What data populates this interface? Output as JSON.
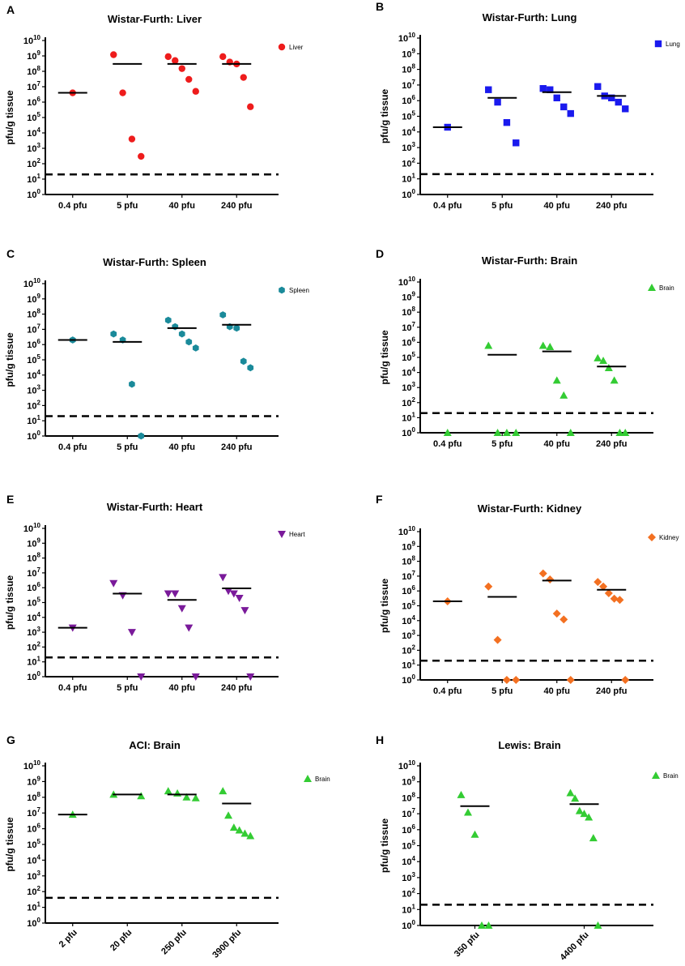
{
  "figure": {
    "colors": {
      "liver": "#ee1c1c",
      "lung": "#1a1aee",
      "spleen": "#1a8a9a",
      "brain": "#33cc33",
      "heart": "#7a1a9a",
      "kidney": "#f37021"
    }
  },
  "chart_data": [
    {
      "type": "scatter",
      "panel": "A",
      "title": "Wistar-Furth: Liver",
      "ylabel": "pfu/g tissue",
      "yscale": "log10",
      "ylim": [
        1,
        10000000000
      ],
      "yticks": [
        "10",
        "10",
        "10",
        "10",
        "10",
        "10",
        "10",
        "10",
        "10",
        "10",
        "10"
      ],
      "yexponents": [
        "0",
        "1",
        "2",
        "3",
        "4",
        "5",
        "6",
        "7",
        "8",
        "9",
        "10"
      ],
      "categories": [
        "0.4 pfu",
        "5 pfu",
        "40 pfu",
        "240 pfu"
      ],
      "legend": "Liver",
      "marker": "circle",
      "color_key": "liver",
      "detection_limit": 20,
      "means": [
        4000000,
        300000000,
        300000000,
        300000000
      ],
      "points": [
        [
          4000000
        ],
        [
          1200000000,
          4000000,
          4000,
          300
        ],
        [
          900000000,
          500000000,
          150000000,
          30000000,
          5000000
        ],
        [
          900000000,
          400000000,
          300000000,
          40000000,
          500000
        ]
      ]
    },
    {
      "type": "scatter",
      "panel": "B",
      "title": "Wistar-Furth: Lung",
      "ylabel": "pfu/g tissue",
      "yscale": "log10",
      "ylim": [
        1,
        10000000000
      ],
      "yticks": [
        "10",
        "10",
        "10",
        "10",
        "10",
        "10",
        "10",
        "10",
        "10",
        "10",
        "10"
      ],
      "yexponents": [
        "0",
        "1",
        "2",
        "3",
        "4",
        "5",
        "6",
        "7",
        "8",
        "9",
        "10"
      ],
      "categories": [
        "0.4 pfu",
        "5 pfu",
        "40 pfu",
        "240 pfu"
      ],
      "legend": "Lung",
      "marker": "square",
      "color_key": "lung",
      "detection_limit": 20,
      "means": [
        20000,
        1500000,
        3500000,
        2000000
      ],
      "points": [
        [
          20000
        ],
        [
          5000000,
          800000,
          40000,
          2000
        ],
        [
          6000000,
          5000000,
          1500000,
          400000,
          150000
        ],
        [
          8000000,
          2000000,
          1500000,
          800000,
          300000
        ]
      ]
    },
    {
      "type": "scatter",
      "panel": "C",
      "title": "Wistar-Furth: Spleen",
      "ylabel": "pfu/g tissue",
      "yscale": "log10",
      "ylim": [
        1,
        10000000000
      ],
      "yticks": [
        "10",
        "10",
        "10",
        "10",
        "10",
        "10",
        "10",
        "10",
        "10",
        "10",
        "10"
      ],
      "yexponents": [
        "0",
        "1",
        "2",
        "3",
        "4",
        "5",
        "6",
        "7",
        "8",
        "9",
        "10"
      ],
      "categories": [
        "0.4 pfu",
        "5 pfu",
        "40 pfu",
        "240 pfu"
      ],
      "legend": "Spleen",
      "marker": "hexagon",
      "color_key": "spleen",
      "detection_limit": 20,
      "means": [
        2000000,
        1500000,
        12000000,
        20000000
      ],
      "points": [
        [
          2000000
        ],
        [
          5000000,
          2000000,
          2500,
          1
        ],
        [
          40000000,
          15000000,
          5000000,
          1500000,
          600000
        ],
        [
          90000000,
          15000000,
          12000000,
          80000,
          30000
        ]
      ]
    },
    {
      "type": "scatter",
      "panel": "D",
      "title": "Wistar-Furth:  Brain",
      "ylabel": "pfu/g tissue",
      "yscale": "log10",
      "ylim": [
        1,
        10000000000
      ],
      "yticks": [
        "10",
        "10",
        "10",
        "10",
        "10",
        "10",
        "10",
        "10",
        "10",
        "10",
        "10"
      ],
      "yexponents": [
        "0",
        "1",
        "2",
        "3",
        "4",
        "5",
        "6",
        "7",
        "8",
        "9",
        "10"
      ],
      "categories": [
        "0.4 pfu",
        "5 pfu",
        "40 pfu",
        "240 pfu"
      ],
      "legend": "Brain",
      "marker": "triangle",
      "color_key": "brain",
      "detection_limit": 20,
      "means": [
        null,
        150000,
        250000,
        25000
      ],
      "points": [
        [
          1
        ],
        [
          600000,
          1,
          1,
          1
        ],
        [
          600000,
          500000,
          3000,
          300,
          1
        ],
        [
          90000,
          60000,
          20000,
          3000,
          1,
          1
        ]
      ]
    },
    {
      "type": "scatter",
      "panel": "E",
      "title": "Wistar-Furth: Heart",
      "ylabel": "pfu/g tissue",
      "yscale": "log10",
      "ylim": [
        1,
        10000000000
      ],
      "yticks": [
        "10",
        "10",
        "10",
        "10",
        "10",
        "10",
        "10",
        "10",
        "10",
        "10",
        "10"
      ],
      "yexponents": [
        "0",
        "1",
        "2",
        "3",
        "4",
        "5",
        "6",
        "7",
        "8",
        "9",
        "10"
      ],
      "categories": [
        "0.4 pfu",
        "5 pfu",
        "40 pfu",
        "240 pfu"
      ],
      "legend": "Heart",
      "marker": "triangle-down",
      "color_key": "heart",
      "detection_limit": 20,
      "means": [
        2000,
        400000,
        150000,
        900000
      ],
      "points": [
        [
          2000
        ],
        [
          2000000,
          300000,
          1000,
          1
        ],
        [
          400000,
          400000,
          40000,
          2000,
          1
        ],
        [
          5000000,
          600000,
          400000,
          200000,
          30000,
          1
        ]
      ]
    },
    {
      "type": "scatter",
      "panel": "F",
      "title": "Wistar-Furth: Kidney",
      "ylabel": "pfu/g tissue",
      "yscale": "log10",
      "ylim": [
        1,
        10000000000
      ],
      "yticks": [
        "10",
        "10",
        "10",
        "10",
        "10",
        "10",
        "10",
        "10",
        "10",
        "10",
        "10"
      ],
      "yexponents": [
        "0",
        "1",
        "2",
        "3",
        "4",
        "5",
        "6",
        "7",
        "8",
        "9",
        "10"
      ],
      "categories": [
        "0.4 pfu",
        "5 pfu",
        "40 pfu",
        "240 pfu"
      ],
      "legend": "Kidney",
      "marker": "diamond",
      "color_key": "kidney",
      "detection_limit": 20,
      "means": [
        200000,
        400000,
        5000000,
        1200000
      ],
      "points": [
        [
          200000
        ],
        [
          2000000,
          500,
          1,
          1
        ],
        [
          15000000,
          6000000,
          30000,
          12000,
          1
        ],
        [
          4000000,
          2000000,
          700000,
          300000,
          250000,
          1
        ]
      ]
    },
    {
      "type": "scatter",
      "panel": "G",
      "title": "ACI: Brain",
      "ylabel": "pfu/g tissue",
      "yscale": "log10",
      "ylim": [
        1,
        10000000000
      ],
      "yticks": [
        "10",
        "10",
        "10",
        "10",
        "10",
        "10",
        "10",
        "10",
        "10",
        "10",
        "10"
      ],
      "yexponents": [
        "0",
        "1",
        "2",
        "3",
        "4",
        "5",
        "6",
        "7",
        "8",
        "9",
        "10"
      ],
      "categories": [
        "2 pfu",
        "20 pfu",
        "250 pfu",
        "3900 pfu"
      ],
      "legend": "Brain",
      "marker": "triangle",
      "color_key": "brain",
      "detection_limit": 40,
      "means": [
        8000000,
        150000000,
        150000000,
        40000000
      ],
      "points": [
        [
          8000000
        ],
        [
          150000000,
          120000000
        ],
        [
          250000000,
          180000000,
          100000000,
          90000000
        ],
        [
          250000000,
          7000000,
          1200000,
          800000,
          500000,
          350000
        ]
      ]
    },
    {
      "type": "scatter",
      "panel": "H",
      "title": "Lewis: Brain",
      "ylabel": "pfu/g tissue",
      "yscale": "log10",
      "ylim": [
        1,
        10000000000
      ],
      "yticks": [
        "10",
        "10",
        "10",
        "10",
        "10",
        "10",
        "10",
        "10",
        "10",
        "10",
        "10"
      ],
      "yexponents": [
        "0",
        "1",
        "2",
        "3",
        "4",
        "5",
        "6",
        "7",
        "8",
        "9",
        "10"
      ],
      "categories": [
        "350 pfu",
        "4400 pfu"
      ],
      "legend": "Brain",
      "marker": "triangle",
      "color_key": "brain",
      "detection_limit": 20,
      "means": [
        30000000,
        40000000
      ],
      "points": [
        [
          150000000,
          12000000,
          500000,
          1,
          1
        ],
        [
          200000000,
          90000000,
          15000000,
          10000000,
          6000000,
          300000,
          1
        ]
      ]
    }
  ]
}
